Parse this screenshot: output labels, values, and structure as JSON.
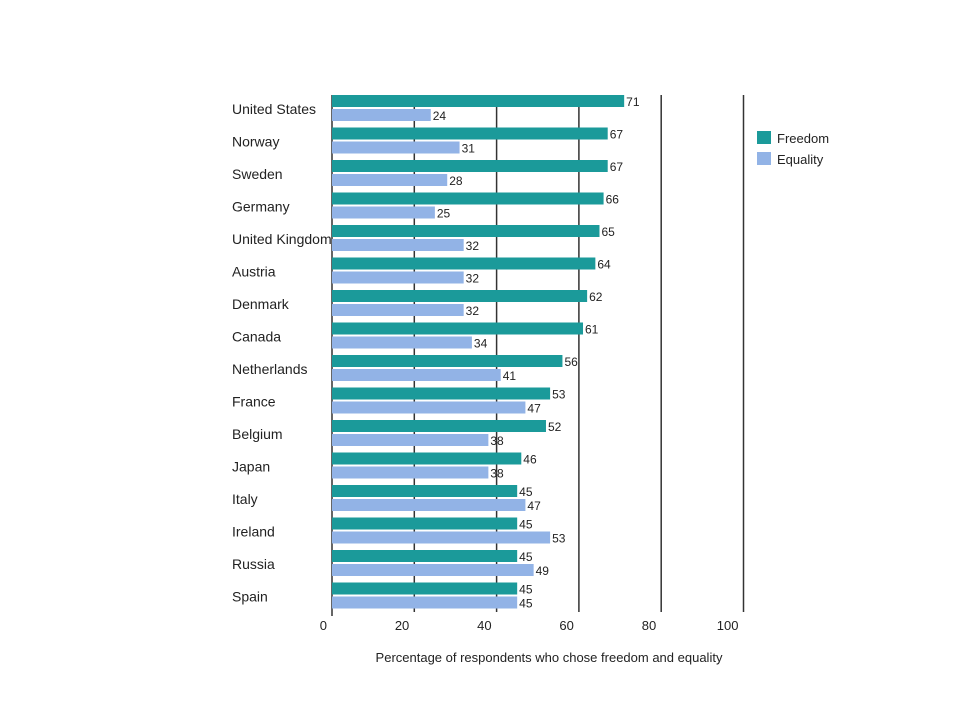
{
  "chart_data": {
    "type": "bar",
    "orientation": "horizontal",
    "categories": [
      "United States",
      "Norway",
      "Sweden",
      "Germany",
      "United Kingdom",
      "Austria",
      "Denmark",
      "Canada",
      "Netherlands",
      "France",
      "Belgium",
      "Japan",
      "Italy",
      "Ireland",
      "Russia",
      "Spain"
    ],
    "series": [
      {
        "name": "Freedom",
        "color": "#1b9a9a",
        "values": [
          71,
          67,
          67,
          66,
          65,
          64,
          62,
          61,
          56,
          53,
          52,
          46,
          45,
          45,
          45,
          45
        ]
      },
      {
        "name": "Equality",
        "color": "#92b3e6",
        "values": [
          24,
          31,
          28,
          25,
          32,
          32,
          32,
          34,
          41,
          47,
          38,
          38,
          47,
          53,
          49,
          45
        ]
      }
    ],
    "xlabel": "Percentage of respondents who chose freedom and equality",
    "ylabel": "",
    "xlim": [
      0,
      100
    ],
    "xticks": [
      0,
      20,
      40,
      60,
      80,
      100
    ],
    "grid": true,
    "legend_position": "right"
  }
}
